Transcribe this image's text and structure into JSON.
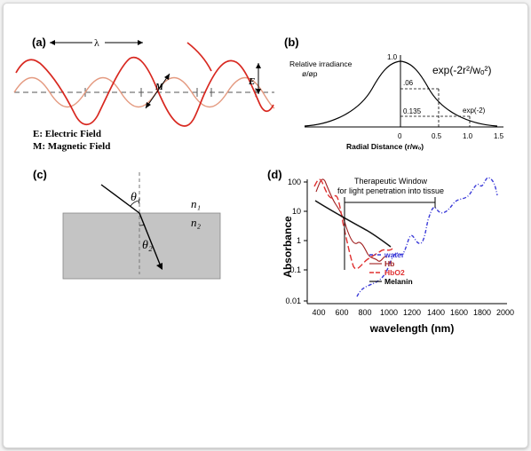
{
  "panel_a": {
    "label": "(a)",
    "lambda": "λ",
    "e_mark": "E",
    "m_mark": "M",
    "legend_e": "E: Electric Field",
    "legend_m": "M: Magnetic Field"
  },
  "panel_b": {
    "label": "(b)",
    "y_title_1": "Relative irradiance",
    "y_title_2": "ø/øp",
    "y_tick_top": "1.0",
    "formula": "exp(-2r²/wₒ²)",
    "val_06": ".06",
    "val_0135": "0.135",
    "exp_label": "exp(-2)",
    "xlabel": "Radial Distance (r/wₒ)",
    "x_ticks": [
      "0",
      "0.5",
      "1.0",
      "1.5"
    ]
  },
  "panel_c": {
    "label": "(c)",
    "theta1": "θ₁",
    "theta2": "θ₂",
    "n1": "n₁",
    "n2": "n₂"
  },
  "panel_d": {
    "label": "(d)",
    "window_title_1": "Therapeutic Window",
    "window_title_2": "for light penetration into tissue",
    "ylabel": "Absorbance",
    "xlabel": "wavelength (nm)",
    "y_ticks": [
      "100",
      "10",
      "1",
      "0.1",
      "0.01"
    ],
    "x_ticks": [
      "400",
      "600",
      "800",
      "1000",
      "1200",
      "1400",
      "1600",
      "1800",
      "2000"
    ],
    "legend": [
      {
        "name": "water",
        "color": "#3a3ad8"
      },
      {
        "name": "Hb",
        "color": "#a02020"
      },
      {
        "name": "HbO2",
        "color": "#e03030"
      },
      {
        "name": "Melanin",
        "color": "#111111"
      }
    ]
  },
  "colors": {
    "wave_red": "#d82820",
    "wave_pink": "#e49a80",
    "slab": "#c4c4c4"
  }
}
